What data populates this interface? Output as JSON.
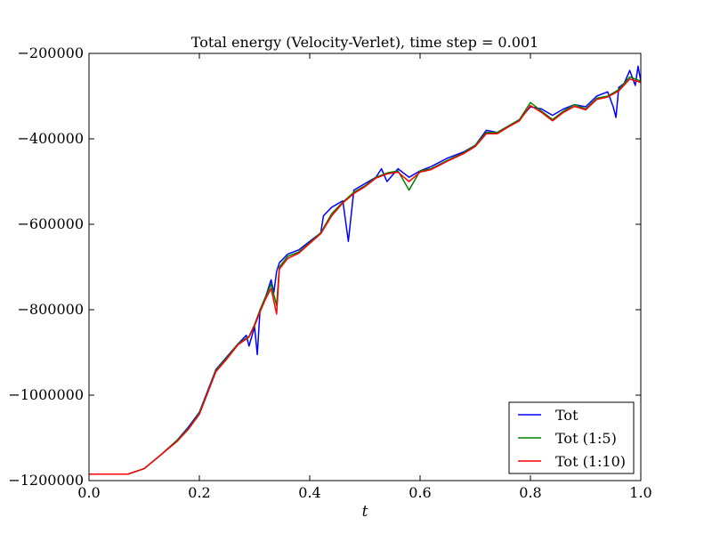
{
  "chart_data": {
    "type": "line",
    "title": "Total energy (Velocity-Verlet), time step = 0.001",
    "xlabel": "t",
    "ylabel": "",
    "xlim": [
      0.0,
      1.0
    ],
    "ylim": [
      -1200000,
      -200000
    ],
    "x_ticks": [
      0.0,
      0.2,
      0.4,
      0.6,
      0.8,
      1.0
    ],
    "x_tick_labels": [
      "0.0",
      "0.2",
      "0.4",
      "0.6",
      "0.8",
      "1.0"
    ],
    "y_ticks": [
      -200000,
      -400000,
      -600000,
      -800000,
      -1000000,
      -1200000
    ],
    "y_tick_labels": [
      "−200000",
      "−400000",
      "−600000",
      "−800000",
      "−1000000",
      "−1200000"
    ],
    "grid": false,
    "legend_position": "lower-right",
    "series": [
      {
        "name": "Tot",
        "color": "#0000ff",
        "x": [
          0.0,
          0.07,
          0.1,
          0.13,
          0.16,
          0.18,
          0.2,
          0.215,
          0.23,
          0.25,
          0.27,
          0.285,
          0.29,
          0.3,
          0.305,
          0.31,
          0.32,
          0.33,
          0.335,
          0.34,
          0.345,
          0.36,
          0.38,
          0.4,
          0.42,
          0.425,
          0.44,
          0.46,
          0.47,
          0.48,
          0.5,
          0.52,
          0.53,
          0.54,
          0.56,
          0.58,
          0.6,
          0.62,
          0.65,
          0.68,
          0.7,
          0.72,
          0.74,
          0.76,
          0.78,
          0.8,
          0.82,
          0.84,
          0.86,
          0.88,
          0.9,
          0.92,
          0.94,
          0.95,
          0.955,
          0.96,
          0.97,
          0.98,
          0.99,
          0.995,
          1.0
        ],
        "y": [
          -1185000,
          -1185000,
          -1172000,
          -1140000,
          -1105000,
          -1075000,
          -1040000,
          -990000,
          -940000,
          -910000,
          -880000,
          -860000,
          -885000,
          -840000,
          -905000,
          -800000,
          -770000,
          -730000,
          -760000,
          -710000,
          -690000,
          -670000,
          -660000,
          -640000,
          -620000,
          -580000,
          -560000,
          -545000,
          -640000,
          -520000,
          -505000,
          -490000,
          -470000,
          -500000,
          -470000,
          -490000,
          -475000,
          -465000,
          -445000,
          -430000,
          -415000,
          -380000,
          -385000,
          -370000,
          -355000,
          -325000,
          -330000,
          -345000,
          -330000,
          -320000,
          -325000,
          -300000,
          -290000,
          -325000,
          -350000,
          -280000,
          -270000,
          -240000,
          -275000,
          -230000,
          -265000
        ]
      },
      {
        "name": "Tot (1:5)",
        "color": "#008000",
        "x": [
          0.0,
          0.07,
          0.1,
          0.13,
          0.16,
          0.18,
          0.2,
          0.215,
          0.23,
          0.25,
          0.27,
          0.29,
          0.3,
          0.31,
          0.32,
          0.33,
          0.34,
          0.345,
          0.36,
          0.38,
          0.4,
          0.42,
          0.44,
          0.46,
          0.48,
          0.5,
          0.52,
          0.54,
          0.56,
          0.58,
          0.6,
          0.62,
          0.65,
          0.68,
          0.7,
          0.72,
          0.74,
          0.76,
          0.78,
          0.8,
          0.82,
          0.84,
          0.86,
          0.88,
          0.9,
          0.92,
          0.94,
          0.96,
          0.98,
          1.0
        ],
        "y": [
          -1185000,
          -1185000,
          -1172000,
          -1140000,
          -1105000,
          -1078000,
          -1042000,
          -992000,
          -942000,
          -912000,
          -880000,
          -862000,
          -835000,
          -800000,
          -770000,
          -740000,
          -790000,
          -700000,
          -675000,
          -665000,
          -643000,
          -620000,
          -575000,
          -548000,
          -525000,
          -510000,
          -490000,
          -480000,
          -475000,
          -520000,
          -475000,
          -470000,
          -450000,
          -432000,
          -415000,
          -385000,
          -385000,
          -370000,
          -355000,
          -315000,
          -335000,
          -355000,
          -335000,
          -320000,
          -330000,
          -305000,
          -300000,
          -285000,
          -255000,
          -265000
        ]
      },
      {
        "name": "Tot (1:10)",
        "color": "#ff0000",
        "x": [
          0.0,
          0.07,
          0.1,
          0.13,
          0.16,
          0.18,
          0.2,
          0.215,
          0.23,
          0.25,
          0.27,
          0.29,
          0.3,
          0.31,
          0.32,
          0.33,
          0.34,
          0.345,
          0.36,
          0.38,
          0.4,
          0.42,
          0.44,
          0.46,
          0.48,
          0.5,
          0.52,
          0.54,
          0.56,
          0.58,
          0.6,
          0.62,
          0.65,
          0.68,
          0.7,
          0.72,
          0.74,
          0.76,
          0.78,
          0.8,
          0.82,
          0.84,
          0.86,
          0.88,
          0.9,
          0.92,
          0.94,
          0.96,
          0.98,
          1.0
        ],
        "y": [
          -1185000,
          -1185000,
          -1172000,
          -1140000,
          -1108000,
          -1080000,
          -1045000,
          -995000,
          -945000,
          -915000,
          -882000,
          -864000,
          -838000,
          -805000,
          -775000,
          -750000,
          -810000,
          -705000,
          -680000,
          -668000,
          -645000,
          -622000,
          -580000,
          -550000,
          -528000,
          -512000,
          -492000,
          -482000,
          -478000,
          -500000,
          -478000,
          -472000,
          -452000,
          -434000,
          -418000,
          -388000,
          -388000,
          -372000,
          -358000,
          -322000,
          -338000,
          -358000,
          -338000,
          -324000,
          -332000,
          -308000,
          -302000,
          -288000,
          -260000,
          -268000
        ]
      }
    ]
  }
}
